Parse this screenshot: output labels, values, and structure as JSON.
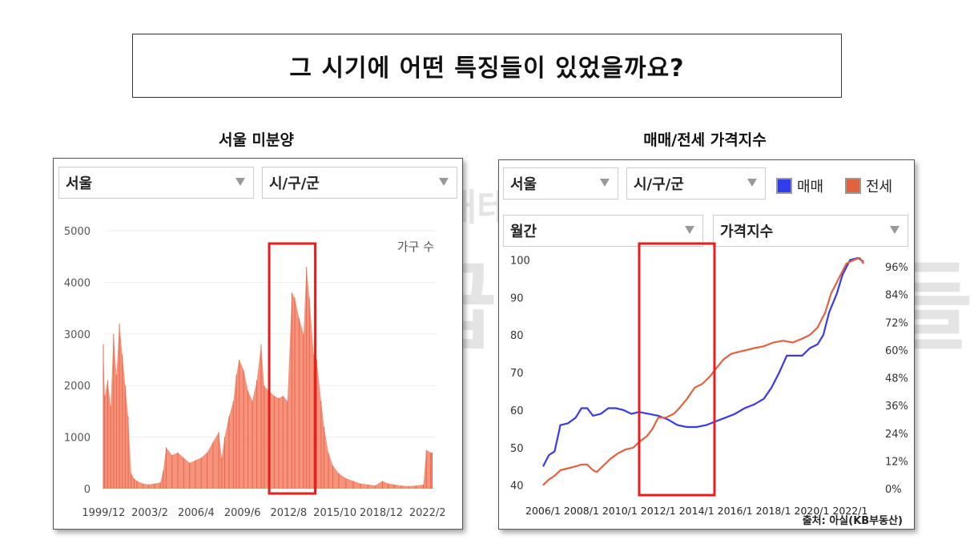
{
  "header": {
    "title": "그 시기에 어떤 특징들이 있었을까요?"
  },
  "left_panel": {
    "subtitle": "서울 미분양",
    "region_select": "서울",
    "district_select": "시/구/군"
  },
  "right_panel": {
    "subtitle": "매매/전세 가격지수",
    "region_select": "서울",
    "district_select": "시/구/군",
    "period_select": "월간",
    "metric_select": "가격지수",
    "source": "출처: 아실(KB부동산)"
  },
  "watermark": {
    "line1": "직장인 재테크 학교",
    "line2": "월급쟁이 부자들"
  },
  "colors": {
    "unsold_fill": "#f4876e",
    "sale_line": "#3a3ae6",
    "jeonse_line": "#e0623f",
    "highlight": "#e61e1e"
  },
  "chart_data": [
    {
      "type": "area",
      "title": "서울 미분양",
      "ylabel": "가구 수",
      "ylim": [
        0,
        5000
      ],
      "yticks": [
        0,
        1000,
        2000,
        3000,
        4000,
        5000
      ],
      "xlim": [
        1999.9,
        2022.7
      ],
      "xticks": [
        {
          "label": "1999/12",
          "v": 1999.92
        },
        {
          "label": "2003/2",
          "v": 2003.08
        },
        {
          "label": "2006/4",
          "v": 2006.25
        },
        {
          "label": "2009/6",
          "v": 2009.42
        },
        {
          "label": "2012/8",
          "v": 2012.58
        },
        {
          "label": "2015/10",
          "v": 2015.75
        },
        {
          "label": "2018/12",
          "v": 2018.92
        },
        {
          "label": "2022/2",
          "v": 2022.08
        }
      ],
      "series": [
        {
          "name": "미분양",
          "points": [
            [
              1999.9,
              2800
            ],
            [
              2000.0,
              1800
            ],
            [
              2000.2,
              2100
            ],
            [
              2000.4,
              1600
            ],
            [
              2000.6,
              3000
            ],
            [
              2000.8,
              2200
            ],
            [
              2001.0,
              3200
            ],
            [
              2001.2,
              2600
            ],
            [
              2001.4,
              2000
            ],
            [
              2001.6,
              1400
            ],
            [
              2001.8,
              300
            ],
            [
              2002.0,
              200
            ],
            [
              2002.2,
              150
            ],
            [
              2002.6,
              100
            ],
            [
              2003.0,
              80
            ],
            [
              2003.4,
              100
            ],
            [
              2003.8,
              120
            ],
            [
              2004.0,
              350
            ],
            [
              2004.2,
              800
            ],
            [
              2004.6,
              650
            ],
            [
              2005.0,
              700
            ],
            [
              2005.4,
              600
            ],
            [
              2005.8,
              500
            ],
            [
              2006.2,
              550
            ],
            [
              2006.6,
              600
            ],
            [
              2007.0,
              700
            ],
            [
              2007.4,
              900
            ],
            [
              2007.8,
              1100
            ],
            [
              2008.0,
              600
            ],
            [
              2008.2,
              1000
            ],
            [
              2008.5,
              1400
            ],
            [
              2008.8,
              1700
            ],
            [
              2009.0,
              2200
            ],
            [
              2009.2,
              2500
            ],
            [
              2009.5,
              2300
            ],
            [
              2009.8,
              1900
            ],
            [
              2010.1,
              1700
            ],
            [
              2010.4,
              2100
            ],
            [
              2010.7,
              2800
            ],
            [
              2010.9,
              2000
            ],
            [
              2011.2,
              1900
            ],
            [
              2011.6,
              1800
            ],
            [
              2011.9,
              1750
            ],
            [
              2012.2,
              1800
            ],
            [
              2012.5,
              1700
            ],
            [
              2012.8,
              3800
            ],
            [
              2013.0,
              3700
            ],
            [
              2013.3,
              3300
            ],
            [
              2013.6,
              3000
            ],
            [
              2013.8,
              4300
            ],
            [
              2014.0,
              3700
            ],
            [
              2014.3,
              2600
            ],
            [
              2014.5,
              2500
            ],
            [
              2014.8,
              1700
            ],
            [
              2015.0,
              1200
            ],
            [
              2015.3,
              700
            ],
            [
              2015.6,
              450
            ],
            [
              2016.0,
              300
            ],
            [
              2016.5,
              200
            ],
            [
              2017.0,
              150
            ],
            [
              2017.5,
              100
            ],
            [
              2018.0,
              80
            ],
            [
              2018.5,
              60
            ],
            [
              2019.0,
              150
            ],
            [
              2019.4,
              100
            ],
            [
              2019.8,
              80
            ],
            [
              2020.3,
              60
            ],
            [
              2020.8,
              50
            ],
            [
              2021.3,
              60
            ],
            [
              2021.8,
              80
            ],
            [
              2022.0,
              750
            ],
            [
              2022.3,
              700
            ],
            [
              2022.4,
              700
            ]
          ]
        }
      ]
    },
    {
      "type": "line",
      "title": "매매/전세 가격지수",
      "ylim": [
        38,
        102
      ],
      "yticks": [
        40,
        50,
        60,
        70,
        80,
        90,
        100
      ],
      "y2ticks": [
        "0%",
        "12%",
        "24%",
        "36%",
        "48%",
        "60%",
        "72%",
        "84%",
        "96%"
      ],
      "xlim": [
        2006.0,
        2022.9
      ],
      "xticks": [
        {
          "label": "2006/1",
          "v": 2006.0
        },
        {
          "label": "2008/1",
          "v": 2008.0
        },
        {
          "label": "2010/1",
          "v": 2010.0
        },
        {
          "label": "2012/1",
          "v": 2012.0
        },
        {
          "label": "2014/1",
          "v": 2014.0
        },
        {
          "label": "2016/1",
          "v": 2016.0
        },
        {
          "label": "2018/1",
          "v": 2018.0
        },
        {
          "label": "2020/1",
          "v": 2020.0
        },
        {
          "label": "2022/1",
          "v": 2022.0
        }
      ],
      "series": [
        {
          "name": "매매",
          "points": [
            [
              2006.0,
              45
            ],
            [
              2006.3,
              48
            ],
            [
              2006.6,
              49
            ],
            [
              2006.9,
              56
            ],
            [
              2007.3,
              56.5
            ],
            [
              2007.7,
              58
            ],
            [
              2008.0,
              60.5
            ],
            [
              2008.3,
              60.5
            ],
            [
              2008.6,
              58.5
            ],
            [
              2009.0,
              59
            ],
            [
              2009.4,
              60.5
            ],
            [
              2009.8,
              60.5
            ],
            [
              2010.2,
              60
            ],
            [
              2010.6,
              59
            ],
            [
              2011.0,
              59.5
            ],
            [
              2011.5,
              59
            ],
            [
              2012.0,
              58.5
            ],
            [
              2012.5,
              57.5
            ],
            [
              2013.0,
              56
            ],
            [
              2013.5,
              55.5
            ],
            [
              2014.0,
              55.5
            ],
            [
              2014.5,
              56
            ],
            [
              2015.0,
              57
            ],
            [
              2015.5,
              58
            ],
            [
              2016.0,
              59
            ],
            [
              2016.5,
              60.5
            ],
            [
              2017.0,
              61.5
            ],
            [
              2017.5,
              63
            ],
            [
              2017.9,
              66
            ],
            [
              2018.3,
              70
            ],
            [
              2018.7,
              74.5
            ],
            [
              2019.0,
              74.5
            ],
            [
              2019.5,
              74.5
            ],
            [
              2019.9,
              76.5
            ],
            [
              2020.3,
              77.5
            ],
            [
              2020.6,
              80
            ],
            [
              2020.9,
              86
            ],
            [
              2021.3,
              91
            ],
            [
              2021.6,
              96
            ],
            [
              2022.0,
              100
            ],
            [
              2022.4,
              100.5
            ],
            [
              2022.7,
              99.5
            ]
          ]
        },
        {
          "name": "전세",
          "points": [
            [
              2006.0,
              40
            ],
            [
              2006.3,
              41.5
            ],
            [
              2006.6,
              42.5
            ],
            [
              2006.9,
              44
            ],
            [
              2007.3,
              44.5
            ],
            [
              2007.7,
              45
            ],
            [
              2008.0,
              45.5
            ],
            [
              2008.3,
              45.5
            ],
            [
              2008.6,
              44
            ],
            [
              2008.8,
              43.5
            ],
            [
              2009.1,
              45
            ],
            [
              2009.5,
              47
            ],
            [
              2009.9,
              48.5
            ],
            [
              2010.3,
              49.5
            ],
            [
              2010.7,
              50
            ],
            [
              2011.0,
              51.5
            ],
            [
              2011.4,
              53
            ],
            [
              2011.7,
              55
            ],
            [
              2012.0,
              58
            ],
            [
              2012.4,
              58
            ],
            [
              2012.8,
              59
            ],
            [
              2013.1,
              60.5
            ],
            [
              2013.5,
              63
            ],
            [
              2013.9,
              66
            ],
            [
              2014.3,
              67
            ],
            [
              2014.7,
              69
            ],
            [
              2015.0,
              71
            ],
            [
              2015.4,
              73.5
            ],
            [
              2015.8,
              75
            ],
            [
              2016.2,
              75.5
            ],
            [
              2016.6,
              76
            ],
            [
              2017.0,
              76.5
            ],
            [
              2017.5,
              77
            ],
            [
              2018.0,
              78
            ],
            [
              2018.5,
              78.5
            ],
            [
              2019.0,
              78
            ],
            [
              2019.5,
              79
            ],
            [
              2019.9,
              80
            ],
            [
              2020.3,
              82
            ],
            [
              2020.7,
              86
            ],
            [
              2021.0,
              91
            ],
            [
              2021.4,
              95
            ],
            [
              2021.8,
              99
            ],
            [
              2022.2,
              100
            ],
            [
              2022.5,
              100.5
            ],
            [
              2022.7,
              99
            ]
          ]
        }
      ]
    }
  ]
}
